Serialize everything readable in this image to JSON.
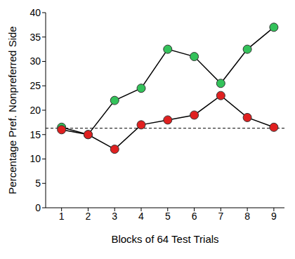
{
  "chart_data": {
    "type": "line",
    "x_label": "Blocks of 64 Test Trials",
    "y_label": "Percentage Pref. Nonpreferred Side",
    "x": [
      1,
      2,
      3,
      4,
      5,
      6,
      7,
      8,
      9
    ],
    "series": [
      {
        "color": "#33c25a",
        "marker": "circle",
        "values": [
          16.5,
          15,
          22,
          24.5,
          32.5,
          31,
          25.5,
          32.5,
          37
        ]
      },
      {
        "color": "#e02020",
        "marker": "circle",
        "values": [
          16,
          15,
          12,
          17,
          18,
          19,
          23,
          18.5,
          16.5
        ]
      }
    ],
    "baseline": 16.3,
    "xlim": [
      0.4,
      9.4
    ],
    "xticks": [
      1,
      2,
      3,
      4,
      5,
      6,
      7,
      8,
      9
    ],
    "ylim": [
      0,
      40
    ],
    "yticks": [
      0,
      5,
      10,
      15,
      20,
      25,
      30,
      35,
      40
    ],
    "grid": false
  }
}
